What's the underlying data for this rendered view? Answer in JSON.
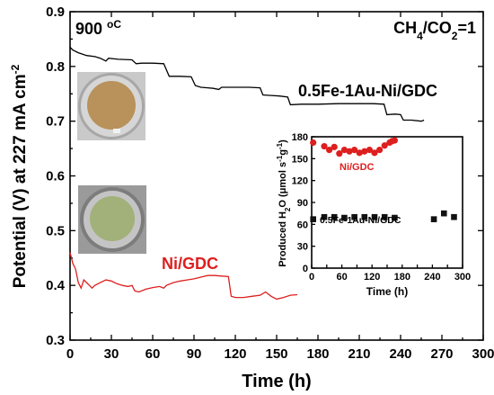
{
  "chart_data": [
    {
      "type": "line",
      "xlabel": "Time (h)",
      "ylabel": "Potential (V) at 227 mA cm",
      "ylabel_sup": "-2",
      "xlim": [
        0,
        300
      ],
      "ylim": [
        0.3,
        0.9
      ],
      "x_ticks": [
        "0",
        "30",
        "60",
        "90",
        "120",
        "150",
        "180",
        "210",
        "240",
        "270",
        "300"
      ],
      "y_ticks": [
        "0.3",
        "0.4",
        "0.5",
        "0.6",
        "0.7",
        "0.8",
        "0.9"
      ],
      "annotations": {
        "temperature": "900 ",
        "temperature_unit": "oC",
        "ratio_prefix": "CH",
        "ratio_sub1": "4",
        "ratio_mid": "/CO",
        "ratio_sub2": "2",
        "ratio_suffix": "=1"
      },
      "series": [
        {
          "name": "0.5Fe-1Au-Ni/GDC",
          "color": "#000000",
          "points": [
            [
              0,
              0.835
            ],
            [
              2,
              0.83
            ],
            [
              6,
              0.825
            ],
            [
              12,
              0.82
            ],
            [
              18,
              0.818
            ],
            [
              22,
              0.815
            ],
            [
              26,
              0.81
            ],
            [
              28,
              0.815
            ],
            [
              35,
              0.813
            ],
            [
              45,
              0.812
            ],
            [
              48,
              0.805
            ],
            [
              52,
              0.806
            ],
            [
              60,
              0.806
            ],
            [
              68,
              0.805
            ],
            [
              72,
              0.782
            ],
            [
              80,
              0.782
            ],
            [
              88,
              0.781
            ],
            [
              91,
              0.765
            ],
            [
              95,
              0.762
            ],
            [
              100,
              0.761
            ],
            [
              104,
              0.76
            ],
            [
              108,
              0.758
            ],
            [
              110,
              0.762
            ],
            [
              116,
              0.762
            ],
            [
              122,
              0.762
            ],
            [
              130,
              0.762
            ],
            [
              138,
              0.761
            ],
            [
              140,
              0.748
            ],
            [
              146,
              0.747
            ],
            [
              152,
              0.746
            ],
            [
              158,
              0.744
            ],
            [
              160,
              0.73
            ],
            [
              168,
              0.731
            ],
            [
              180,
              0.731
            ],
            [
              195,
              0.732
            ],
            [
              210,
              0.732
            ],
            [
              220,
              0.732
            ],
            [
              228,
              0.731
            ],
            [
              230,
              0.712
            ],
            [
              236,
              0.713
            ],
            [
              240,
              0.712
            ],
            [
              242,
              0.702
            ],
            [
              248,
              0.702
            ],
            [
              255,
              0.7
            ],
            [
              257,
              0.702
            ]
          ]
        },
        {
          "name": "Ni/GDC",
          "color": "#dd1f1f",
          "points": [
            [
              0,
              0.46
            ],
            [
              2,
              0.44
            ],
            [
              4,
              0.43
            ],
            [
              6,
              0.405
            ],
            [
              8,
              0.395
            ],
            [
              10,
              0.41
            ],
            [
              12,
              0.405
            ],
            [
              14,
              0.4
            ],
            [
              16,
              0.395
            ],
            [
              18,
              0.4
            ],
            [
              22,
              0.405
            ],
            [
              26,
              0.41
            ],
            [
              30,
              0.408
            ],
            [
              34,
              0.403
            ],
            [
              38,
              0.4
            ],
            [
              42,
              0.398
            ],
            [
              45,
              0.4
            ],
            [
              47,
              0.39
            ],
            [
              50,
              0.388
            ],
            [
              55,
              0.393
            ],
            [
              60,
              0.396
            ],
            [
              65,
              0.398
            ],
            [
              68,
              0.395
            ],
            [
              70,
              0.4
            ],
            [
              75,
              0.405
            ],
            [
              80,
              0.408
            ],
            [
              85,
              0.41
            ],
            [
              90,
              0.412
            ],
            [
              95,
              0.415
            ],
            [
              100,
              0.418
            ],
            [
              105,
              0.418
            ],
            [
              110,
              0.417
            ],
            [
              115,
              0.416
            ],
            [
              117,
              0.38
            ],
            [
              120,
              0.378
            ],
            [
              126,
              0.378
            ],
            [
              132,
              0.38
            ],
            [
              138,
              0.382
            ],
            [
              142,
              0.388
            ],
            [
              146,
              0.38
            ],
            [
              150,
              0.375
            ],
            [
              155,
              0.378
            ],
            [
              160,
              0.382
            ],
            [
              165,
              0.383
            ]
          ]
        }
      ],
      "series_labels": [
        "0.5Fe-1Au-Ni/GDC",
        "Ni/GDC"
      ]
    },
    {
      "type": "scatter",
      "xlabel": "Time (h)",
      "ylabel_main": "Produced H",
      "ylabel_sub1": "2",
      "ylabel_mid": "O (",
      "ylabel_mu": "μ",
      "ylabel_rest": "mol s",
      "ylabel_sup1": "-1",
      "ylabel_g": "g",
      "ylabel_sup2": "-1",
      "ylabel_end": ")",
      "xlim": [
        0,
        300
      ],
      "ylim": [
        0,
        180
      ],
      "x_ticks": [
        "0",
        "30",
        "60",
        "90",
        "120",
        "150",
        "180",
        "210",
        "240",
        "270",
        "300"
      ],
      "x_tick_labels_shown": [
        "0",
        "60",
        "120",
        "180",
        "240",
        "300"
      ],
      "y_ticks": [
        "0",
        "30",
        "60",
        "90",
        "120",
        "150",
        "180"
      ],
      "series": [
        {
          "name": "Ni/GDC",
          "color": "#dd1f1f",
          "marker": "circle",
          "x": [
            3,
            25,
            35,
            45,
            55,
            65,
            75,
            85,
            95,
            105,
            115,
            125,
            135,
            145,
            155,
            160,
            165
          ],
          "y": [
            172,
            167,
            162,
            166,
            157,
            162,
            160,
            162,
            158,
            160,
            162,
            158,
            162,
            168,
            172,
            174,
            175
          ]
        },
        {
          "name": "0.5Fe-1Au-Ni/GDC",
          "color": "#111111",
          "marker": "square",
          "x": [
            3,
            25,
            45,
            65,
            85,
            105,
            125,
            145,
            165,
            243,
            263,
            283
          ],
          "y": [
            67,
            70,
            70,
            69,
            70,
            70,
            70,
            70,
            69,
            67,
            75,
            70
          ]
        }
      ]
    }
  ]
}
